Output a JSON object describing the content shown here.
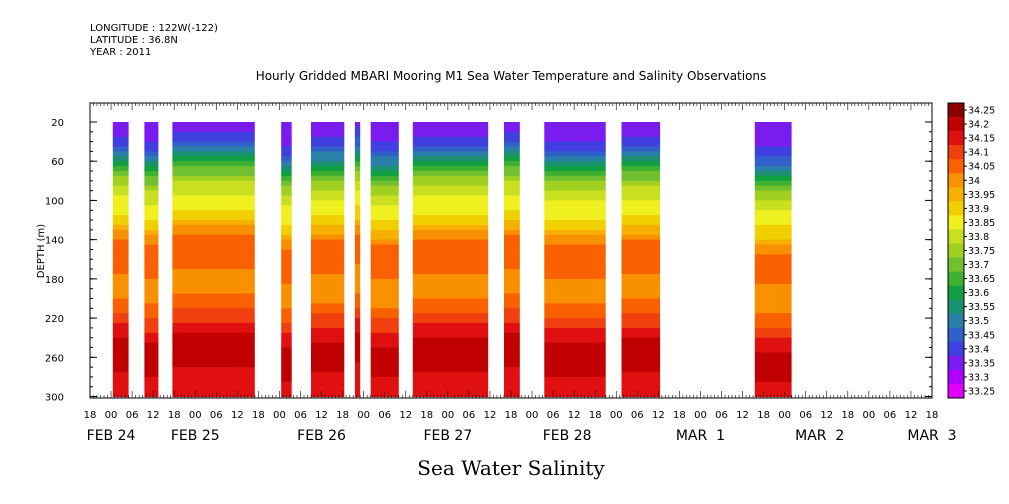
{
  "header": {
    "lines": [
      "LONGITUDE : 122W(-122)",
      "LATITUDE : 36.8N",
      "YEAR : 2011"
    ]
  },
  "chart_data": {
    "type": "heatmap",
    "title": "Hourly Gridded MBARI Mooring M1 Sea Water Temperature and Salinity Observations",
    "xlabel": "Sea Water Salinity",
    "ylabel": "DEPTH (m)",
    "ylim": [
      300,
      20
    ],
    "y_ticks": [
      20,
      60,
      100,
      140,
      180,
      220,
      260,
      300
    ],
    "x_range_hours": [
      -6,
      234
    ],
    "x_hour_ticks": [
      "18",
      "00",
      "06",
      "12",
      "18",
      "00",
      "06",
      "12",
      "18",
      "00",
      "06",
      "12",
      "18",
      "00",
      "06",
      "12",
      "18",
      "00",
      "06",
      "12",
      "18",
      "00",
      "06",
      "12",
      "18",
      "00",
      "06",
      "12",
      "18",
      "00",
      "06",
      "12",
      "18",
      "00",
      "06",
      "12",
      "18",
      "00",
      "06",
      "12",
      "18"
    ],
    "x_date_labels": [
      {
        "label": "FEB 24",
        "hour": 0
      },
      {
        "label": "FEB 25",
        "hour": 24
      },
      {
        "label": "FEB 26",
        "hour": 60
      },
      {
        "label": "FEB 27",
        "hour": 96
      },
      {
        "label": "FEB 28",
        "hour": 130
      },
      {
        "label": "MAR  1",
        "hour": 168
      },
      {
        "label": "MAR  2",
        "hour": 202
      },
      {
        "label": "MAR  3",
        "hour": 234
      }
    ],
    "levels": [
      33.25,
      33.3,
      33.35,
      33.4,
      33.45,
      33.5,
      33.55,
      33.6,
      33.65,
      33.7,
      33.75,
      33.8,
      33.85,
      33.9,
      33.95,
      34,
      34.05,
      34.1,
      34.15,
      34.2,
      34.25
    ],
    "level_labels": [
      "34.25",
      "34.2",
      "34.15",
      "34.1",
      "34.05",
      "34",
      "33.95",
      "33.9",
      "33.85",
      "33.8",
      "33.75",
      "33.7",
      "33.65",
      "33.6",
      "33.55",
      "33.5",
      "33.45",
      "33.4",
      "33.35",
      "33.3",
      "33.25"
    ],
    "colors": [
      "#e000ff",
      "#b000ff",
      "#7a1cf0",
      "#4040e0",
      "#3060c8",
      "#2a80a8",
      "#1a9070",
      "#10a040",
      "#40b030",
      "#70c030",
      "#a0d020",
      "#c8e020",
      "#f0f020",
      "#f0d000",
      "#f8b000",
      "#f89000",
      "#f86000",
      "#f04010",
      "#e01010",
      "#c00000",
      "#8c0000"
    ],
    "profile": {
      "depth": [
        20,
        40,
        55,
        70,
        85,
        100,
        120,
        140,
        160,
        180,
        200,
        220,
        240,
        260,
        280,
        300
      ],
      "salinity": [
        33.36,
        33.42,
        33.55,
        33.7,
        33.8,
        33.86,
        33.92,
        34.06,
        34.07,
        34.04,
        34.05,
        34.12,
        34.2,
        34.24,
        34.18,
        34.15
      ]
    },
    "data_segments_hours": [
      [
        0.5,
        5
      ],
      [
        9.5,
        13.5
      ],
      [
        17.5,
        41
      ],
      [
        48.5,
        51.5
      ],
      [
        57,
        66.5
      ],
      [
        69.5,
        71
      ],
      [
        74,
        82
      ],
      [
        86,
        107.5
      ],
      [
        112,
        116.5
      ],
      [
        123.5,
        141
      ],
      [
        145.5,
        156.5
      ],
      [
        183.5,
        194
      ]
    ]
  }
}
